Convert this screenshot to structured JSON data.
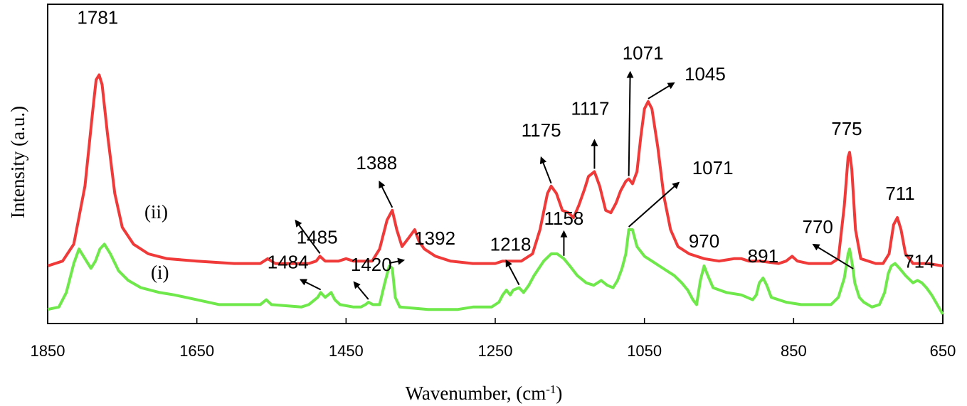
{
  "chart_data": {
    "type": "line",
    "title": "",
    "xlabel": "Wavenumber, (cm",
    "xlabel_sup": "-1",
    "xlabel_close": ")",
    "ylabel": "Intensity (a.u.)",
    "xlim": [
      1850,
      650
    ],
    "x_reversed": true,
    "y_scale": "arbitrary",
    "ylim": [
      0,
      100
    ],
    "grid": false,
    "legend": "none",
    "x_ticks": [
      1850,
      1650,
      1450,
      1250,
      1050,
      850,
      650
    ],
    "series": [
      {
        "tag": "(ii)",
        "color": "#f03a3a",
        "points": [
          [
            1850,
            15
          ],
          [
            1830,
            17
          ],
          [
            1815,
            24
          ],
          [
            1800,
            48
          ],
          [
            1790,
            78
          ],
          [
            1785,
            92
          ],
          [
            1781,
            94
          ],
          [
            1777,
            90
          ],
          [
            1770,
            70
          ],
          [
            1760,
            45
          ],
          [
            1750,
            31
          ],
          [
            1735,
            24
          ],
          [
            1715,
            20
          ],
          [
            1690,
            18
          ],
          [
            1650,
            17
          ],
          [
            1600,
            16
          ],
          [
            1565,
            16
          ],
          [
            1555,
            18
          ],
          [
            1545,
            16
          ],
          [
            1500,
            16
          ],
          [
            1490,
            17
          ],
          [
            1485,
            19
          ],
          [
            1478,
            17
          ],
          [
            1460,
            17
          ],
          [
            1450,
            18
          ],
          [
            1440,
            17
          ],
          [
            1415,
            17
          ],
          [
            1405,
            22
          ],
          [
            1395,
            34
          ],
          [
            1388,
            38
          ],
          [
            1382,
            30
          ],
          [
            1375,
            23
          ],
          [
            1365,
            27
          ],
          [
            1358,
            30
          ],
          [
            1352,
            25
          ],
          [
            1345,
            22
          ],
          [
            1330,
            19
          ],
          [
            1310,
            17
          ],
          [
            1280,
            16
          ],
          [
            1250,
            16
          ],
          [
            1240,
            17
          ],
          [
            1230,
            17
          ],
          [
            1215,
            17
          ],
          [
            1200,
            20
          ],
          [
            1190,
            30
          ],
          [
            1180,
            45
          ],
          [
            1175,
            48
          ],
          [
            1168,
            45
          ],
          [
            1160,
            38
          ],
          [
            1152,
            37
          ],
          [
            1145,
            35
          ],
          [
            1138,
            40
          ],
          [
            1130,
            47
          ],
          [
            1125,
            52
          ],
          [
            1117,
            54
          ],
          [
            1110,
            48
          ],
          [
            1102,
            38
          ],
          [
            1095,
            37
          ],
          [
            1088,
            41
          ],
          [
            1082,
            46
          ],
          [
            1075,
            50
          ],
          [
            1071,
            51
          ],
          [
            1066,
            49
          ],
          [
            1060,
            54
          ],
          [
            1055,
            68
          ],
          [
            1050,
            80
          ],
          [
            1045,
            83
          ],
          [
            1040,
            80
          ],
          [
            1032,
            64
          ],
          [
            1024,
            44
          ],
          [
            1015,
            30
          ],
          [
            1005,
            23
          ],
          [
            990,
            20
          ],
          [
            970,
            18
          ],
          [
            950,
            17
          ],
          [
            930,
            18
          ],
          [
            920,
            18
          ],
          [
            910,
            17
          ],
          [
            895,
            17
          ],
          [
            870,
            16
          ],
          [
            860,
            17
          ],
          [
            852,
            19
          ],
          [
            845,
            17
          ],
          [
            830,
            16
          ],
          [
            800,
            16
          ],
          [
            790,
            18
          ],
          [
            782,
            40
          ],
          [
            777,
            60
          ],
          [
            775,
            62
          ],
          [
            772,
            55
          ],
          [
            767,
            30
          ],
          [
            760,
            18
          ],
          [
            740,
            16
          ],
          [
            730,
            16
          ],
          [
            722,
            20
          ],
          [
            716,
            32
          ],
          [
            711,
            35
          ],
          [
            706,
            30
          ],
          [
            700,
            20
          ],
          [
            690,
            16
          ],
          [
            670,
            16
          ],
          [
            650,
            15
          ]
        ]
      },
      {
        "tag": "(i)",
        "color": "#6ee84a",
        "points": [
          [
            1850,
            -3
          ],
          [
            1835,
            -2
          ],
          [
            1825,
            4
          ],
          [
            1815,
            16
          ],
          [
            1808,
            22
          ],
          [
            1800,
            18
          ],
          [
            1792,
            14
          ],
          [
            1786,
            17
          ],
          [
            1780,
            22
          ],
          [
            1774,
            24
          ],
          [
            1766,
            20
          ],
          [
            1755,
            13
          ],
          [
            1742,
            9
          ],
          [
            1725,
            6
          ],
          [
            1700,
            4
          ],
          [
            1680,
            3
          ],
          [
            1650,
            1
          ],
          [
            1620,
            -1
          ],
          [
            1580,
            -1
          ],
          [
            1565,
            -1
          ],
          [
            1557,
            1
          ],
          [
            1550,
            -1
          ],
          [
            1510,
            -2
          ],
          [
            1500,
            -1
          ],
          [
            1488,
            2
          ],
          [
            1484,
            4
          ],
          [
            1478,
            2
          ],
          [
            1470,
            4
          ],
          [
            1465,
            1
          ],
          [
            1458,
            -1
          ],
          [
            1440,
            -2
          ],
          [
            1430,
            -2
          ],
          [
            1424,
            -1
          ],
          [
            1420,
            0
          ],
          [
            1414,
            -1
          ],
          [
            1405,
            -1
          ],
          [
            1398,
            8
          ],
          [
            1392,
            15
          ],
          [
            1388,
            14
          ],
          [
            1384,
            2
          ],
          [
            1378,
            -2
          ],
          [
            1340,
            -3
          ],
          [
            1300,
            -3
          ],
          [
            1280,
            -2
          ],
          [
            1270,
            -2
          ],
          [
            1255,
            -2
          ],
          [
            1245,
            0
          ],
          [
            1240,
            3
          ],
          [
            1235,
            5
          ],
          [
            1230,
            3
          ],
          [
            1226,
            5
          ],
          [
            1218,
            6
          ],
          [
            1212,
            4
          ],
          [
            1205,
            7
          ],
          [
            1198,
            11
          ],
          [
            1185,
            17
          ],
          [
            1175,
            20
          ],
          [
            1167,
            20
          ],
          [
            1158,
            18
          ],
          [
            1150,
            15
          ],
          [
            1140,
            11
          ],
          [
            1128,
            8
          ],
          [
            1118,
            7
          ],
          [
            1108,
            9
          ],
          [
            1100,
            7
          ],
          [
            1092,
            6
          ],
          [
            1086,
            9
          ],
          [
            1080,
            14
          ],
          [
            1075,
            20
          ],
          [
            1071,
            30
          ],
          [
            1066,
            30
          ],
          [
            1060,
            23
          ],
          [
            1050,
            19
          ],
          [
            1040,
            17
          ],
          [
            1030,
            15
          ],
          [
            1020,
            13
          ],
          [
            1010,
            11
          ],
          [
            1000,
            8
          ],
          [
            992,
            5
          ],
          [
            985,
            1
          ],
          [
            980,
            -1
          ],
          [
            975,
            9
          ],
          [
            970,
            15
          ],
          [
            965,
            11
          ],
          [
            958,
            6
          ],
          [
            940,
            4
          ],
          [
            920,
            3
          ],
          [
            905,
            1
          ],
          [
            900,
            3
          ],
          [
            896,
            8
          ],
          [
            891,
            10
          ],
          [
            886,
            7
          ],
          [
            880,
            2
          ],
          [
            860,
            0
          ],
          [
            840,
            -1
          ],
          [
            820,
            -1
          ],
          [
            800,
            -1
          ],
          [
            790,
            2
          ],
          [
            782,
            10
          ],
          [
            777,
            20
          ],
          [
            775,
            22
          ],
          [
            771,
            15
          ],
          [
            768,
            8
          ],
          [
            762,
            2
          ],
          [
            756,
            0
          ],
          [
            745,
            -2
          ],
          [
            735,
            -1
          ],
          [
            728,
            4
          ],
          [
            723,
            12
          ],
          [
            719,
            15
          ],
          [
            714,
            16
          ],
          [
            708,
            14
          ],
          [
            700,
            11
          ],
          [
            690,
            8
          ],
          [
            684,
            9
          ],
          [
            678,
            8
          ],
          [
            672,
            6
          ],
          [
            665,
            3
          ],
          [
            650,
            -5
          ]
        ]
      }
    ],
    "annotations": [
      {
        "label": "1781",
        "series": 0,
        "wn": 1781,
        "arrow": false
      },
      {
        "label": "1485",
        "series": 0,
        "wn": 1485,
        "arrow": true
      },
      {
        "label": "1388",
        "series": 0,
        "wn": 1388,
        "arrow": true
      },
      {
        "label": "1175",
        "series": 0,
        "wn": 1175,
        "arrow": true
      },
      {
        "label": "1117",
        "series": 0,
        "wn": 1117,
        "arrow": true
      },
      {
        "label": "1071",
        "series": 0,
        "wn": 1071,
        "arrow": true
      },
      {
        "label": "1045",
        "series": 0,
        "wn": 1045,
        "arrow": true
      },
      {
        "label": "775",
        "series": 0,
        "wn": 775,
        "arrow": false
      },
      {
        "label": "711",
        "series": 0,
        "wn": 711,
        "arrow": false
      },
      {
        "label": "770",
        "series": 1,
        "wn": 770,
        "arrow": true
      },
      {
        "label": "1484",
        "series": 1,
        "wn": 1484,
        "arrow": true
      },
      {
        "label": "1420",
        "series": 1,
        "wn": 1420,
        "arrow": true
      },
      {
        "label": "1392",
        "series": 1,
        "wn": 1392,
        "arrow": true
      },
      {
        "label": "1218",
        "series": 1,
        "wn": 1218,
        "arrow": true
      },
      {
        "label": "1158",
        "series": 1,
        "wn": 1158,
        "arrow": true
      },
      {
        "label": "1071",
        "series": 1,
        "wn": 1071,
        "arrow": true
      },
      {
        "label": "970",
        "series": 1,
        "wn": 970,
        "arrow": false
      },
      {
        "label": "891",
        "series": 1,
        "wn": 891,
        "arrow": false
      },
      {
        "label": "714",
        "series": 1,
        "wn": 714,
        "arrow": false
      }
    ]
  }
}
